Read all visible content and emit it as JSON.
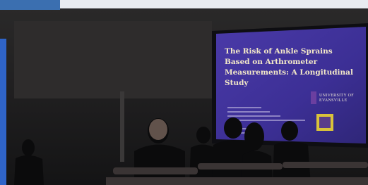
{
  "slide": {
    "title_lines": [
      "The Risk of Ankle Sprains",
      "Based on Arthrometer",
      "Measurements: A Longitudinal",
      "Study"
    ],
    "logo_lines": [
      "UNIVERSITY OF",
      "EVANSVILLE"
    ]
  }
}
